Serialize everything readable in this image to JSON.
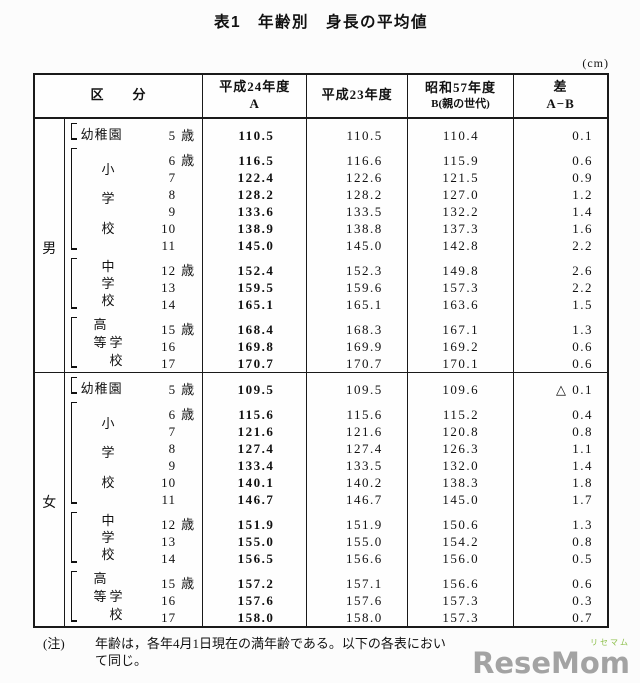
{
  "title": "表1　年齢別　身長の平均値",
  "unit": "(cm)",
  "table": {
    "header": {
      "kubun": "区　　分",
      "h24_line1": "平成24年度",
      "h24_line2": "A",
      "h23": "平成23年度",
      "s57_line1": "昭和57年度",
      "s57_line2": "B(親の世代)",
      "diff_line1": "差",
      "diff_line2": "A−B"
    },
    "row_fields": [
      "age",
      "age_suffix",
      "h24_A",
      "h23",
      "s57_B",
      "diff_A_minus_B"
    ],
    "sections": [
      {
        "gender": "男",
        "groups": [
          {
            "school": {
              "layout": "h",
              "cols": [
                "幼稚園"
              ]
            },
            "rows": [
              [
                "5",
                "歳",
                "110.5",
                "110.5",
                "110.4",
                "0.1"
              ]
            ]
          },
          {
            "school": {
              "layout": "v",
              "cols": [
                "小学校"
              ]
            },
            "rows": [
              [
                "6",
                "歳",
                "116.5",
                "116.6",
                "115.9",
                "0.6"
              ],
              [
                "7",
                "",
                "122.4",
                "122.6",
                "121.5",
                "0.9"
              ],
              [
                "8",
                "",
                "128.2",
                "128.2",
                "127.0",
                "1.2"
              ],
              [
                "9",
                "",
                "133.6",
                "133.5",
                "132.2",
                "1.4"
              ],
              [
                "10",
                "",
                "138.9",
                "138.8",
                "137.3",
                "1.6"
              ],
              [
                "11",
                "",
                "145.0",
                "145.0",
                "142.8",
                "2.2"
              ]
            ]
          },
          {
            "school": {
              "layout": "v",
              "cols": [
                "中学校"
              ]
            },
            "rows": [
              [
                "12",
                "歳",
                "152.4",
                "152.3",
                "149.8",
                "2.6"
              ],
              [
                "13",
                "",
                "159.5",
                "159.6",
                "157.3",
                "2.2"
              ],
              [
                "14",
                "",
                "165.1",
                "165.1",
                "163.6",
                "1.5"
              ]
            ]
          },
          {
            "school": {
              "layout": "v2",
              "cols": [
                "高等",
                "学校"
              ]
            },
            "rows": [
              [
                "15",
                "歳",
                "168.4",
                "168.3",
                "167.1",
                "1.3"
              ],
              [
                "16",
                "",
                "169.8",
                "169.9",
                "169.2",
                "0.6"
              ],
              [
                "17",
                "",
                "170.7",
                "170.7",
                "170.1",
                "0.6"
              ]
            ]
          }
        ]
      },
      {
        "gender": "女",
        "groups": [
          {
            "school": {
              "layout": "h",
              "cols": [
                "幼稚園"
              ]
            },
            "rows": [
              [
                "5",
                "歳",
                "109.5",
                "109.5",
                "109.6",
                "△ 0.1"
              ]
            ]
          },
          {
            "school": {
              "layout": "v",
              "cols": [
                "小学校"
              ]
            },
            "rows": [
              [
                "6",
                "歳",
                "115.6",
                "115.6",
                "115.2",
                "0.4"
              ],
              [
                "7",
                "",
                "121.6",
                "121.6",
                "120.8",
                "0.8"
              ],
              [
                "8",
                "",
                "127.4",
                "127.4",
                "126.3",
                "1.1"
              ],
              [
                "9",
                "",
                "133.4",
                "133.5",
                "132.0",
                "1.4"
              ],
              [
                "10",
                "",
                "140.1",
                "140.2",
                "138.3",
                "1.8"
              ],
              [
                "11",
                "",
                "146.7",
                "146.7",
                "145.0",
                "1.7"
              ]
            ]
          },
          {
            "school": {
              "layout": "v",
              "cols": [
                "中学校"
              ]
            },
            "rows": [
              [
                "12",
                "歳",
                "151.9",
                "151.9",
                "150.6",
                "1.3"
              ],
              [
                "13",
                "",
                "155.0",
                "155.0",
                "154.2",
                "0.8"
              ],
              [
                "14",
                "",
                "156.5",
                "156.6",
                "156.0",
                "0.5"
              ]
            ]
          },
          {
            "school": {
              "layout": "v2",
              "cols": [
                "高等",
                "学校"
              ]
            },
            "rows": [
              [
                "15",
                "歳",
                "157.2",
                "157.1",
                "156.6",
                "0.6"
              ],
              [
                "16",
                "",
                "157.6",
                "157.6",
                "157.3",
                "0.3"
              ],
              [
                "17",
                "",
                "158.0",
                "158.0",
                "157.3",
                "0.7"
              ]
            ]
          }
        ]
      }
    ]
  },
  "note": {
    "label": "(注)",
    "line1": "年齢は，各年4月1日現在の満年齢である。以下の各表におい",
    "line2": "て同じ。"
  },
  "watermark": {
    "small": "リセマム",
    "text": "ReseMom",
    "gray": "#a3a3a3",
    "green": "#8cbf4a"
  }
}
